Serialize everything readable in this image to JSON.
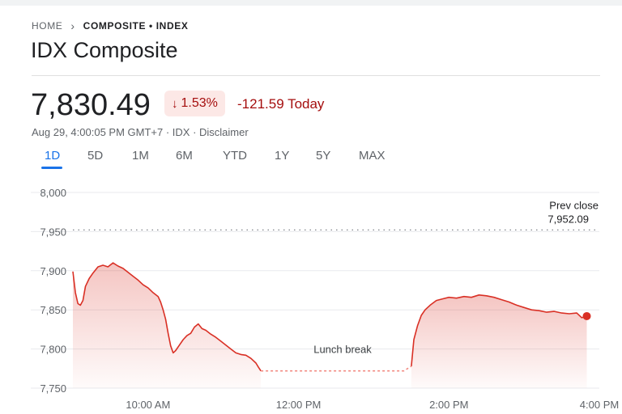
{
  "breadcrumb": {
    "home": "HOME",
    "current": "COMPOSITE • INDEX"
  },
  "title": "IDX Composite",
  "quote": {
    "price": "7,830.49",
    "change_percent": "1.53%",
    "change_abs": "-121.59 Today",
    "timestamp": "Aug 29, 4:00:05 PM GMT+7 · IDX · Disclaimer"
  },
  "tabs": [
    "1D",
    "5D",
    "1M",
    "6M",
    "YTD",
    "1Y",
    "5Y",
    "MAX"
  ],
  "active_tab": "1D",
  "colors": {
    "line": "#d93025",
    "accent": "#1a73e8",
    "negative_text": "#a50e0e",
    "badge_bg": "#fce8e6"
  },
  "chart_data": {
    "type": "line",
    "ylim": [
      7750,
      8000
    ],
    "y_ticks": [
      8000,
      7950,
      7900,
      7850,
      7800,
      7750
    ],
    "y_tick_labels": [
      "8,000",
      "7,950",
      "7,900",
      "7,850",
      "7,800",
      "7,750"
    ],
    "x_ticks": [
      "10:00",
      "12:00",
      "14:00",
      "16:00"
    ],
    "x_tick_labels": [
      "10:00 AM",
      "12:00 PM",
      "2:00 PM",
      "4:00 PM"
    ],
    "xlim": [
      "09:00",
      "16:00"
    ],
    "prev_close": 7952.09,
    "prev_close_label": "Prev close",
    "prev_close_value_label": "7,952.09",
    "lunch_break_label": "Lunch break",
    "lunch_break": [
      "11:30",
      "13:30"
    ],
    "series": [
      {
        "segment": "morning",
        "points": [
          [
            "09:00",
            7899
          ],
          [
            "09:02",
            7872
          ],
          [
            "09:04",
            7858
          ],
          [
            "09:06",
            7856
          ],
          [
            "09:08",
            7862
          ],
          [
            "09:10",
            7880
          ],
          [
            "09:13",
            7890
          ],
          [
            "09:16",
            7897
          ],
          [
            "09:20",
            7905
          ],
          [
            "09:24",
            7907
          ],
          [
            "09:28",
            7905
          ],
          [
            "09:32",
            7910
          ],
          [
            "09:36",
            7906
          ],
          [
            "09:40",
            7903
          ],
          [
            "09:44",
            7898
          ],
          [
            "09:48",
            7893
          ],
          [
            "09:52",
            7888
          ],
          [
            "09:56",
            7882
          ],
          [
            "10:00",
            7878
          ],
          [
            "10:04",
            7872
          ],
          [
            "10:08",
            7867
          ],
          [
            "10:10",
            7860
          ],
          [
            "10:12",
            7850
          ],
          [
            "10:14",
            7838
          ],
          [
            "10:16",
            7820
          ],
          [
            "10:18",
            7804
          ],
          [
            "10:20",
            7795
          ],
          [
            "10:22",
            7798
          ],
          [
            "10:25",
            7805
          ],
          [
            "10:28",
            7812
          ],
          [
            "10:31",
            7817
          ],
          [
            "10:34",
            7820
          ],
          [
            "10:37",
            7828
          ],
          [
            "10:40",
            7832
          ],
          [
            "10:43",
            7826
          ],
          [
            "10:46",
            7824
          ],
          [
            "10:50",
            7819
          ],
          [
            "10:54",
            7815
          ],
          [
            "10:58",
            7810
          ],
          [
            "11:02",
            7805
          ],
          [
            "11:06",
            7800
          ],
          [
            "11:10",
            7795
          ],
          [
            "11:14",
            7793
          ],
          [
            "11:18",
            7792
          ],
          [
            "11:22",
            7788
          ],
          [
            "11:26",
            7782
          ],
          [
            "11:28",
            7777
          ],
          [
            "11:30",
            7772
          ]
        ]
      },
      {
        "segment": "afternoon",
        "points": [
          [
            "13:30",
            7778
          ],
          [
            "13:32",
            7812
          ],
          [
            "13:35",
            7830
          ],
          [
            "13:38",
            7843
          ],
          [
            "13:41",
            7850
          ],
          [
            "13:45",
            7856
          ],
          [
            "13:50",
            7862
          ],
          [
            "13:55",
            7864
          ],
          [
            "14:00",
            7866
          ],
          [
            "14:06",
            7865
          ],
          [
            "14:12",
            7867
          ],
          [
            "14:18",
            7866
          ],
          [
            "14:24",
            7869
          ],
          [
            "14:30",
            7868
          ],
          [
            "14:36",
            7866
          ],
          [
            "14:42",
            7863
          ],
          [
            "14:48",
            7860
          ],
          [
            "14:54",
            7856
          ],
          [
            "15:00",
            7853
          ],
          [
            "15:06",
            7850
          ],
          [
            "15:12",
            7849
          ],
          [
            "15:18",
            7847
          ],
          [
            "15:24",
            7848
          ],
          [
            "15:30",
            7846
          ],
          [
            "15:36",
            7845
          ],
          [
            "15:42",
            7846
          ],
          [
            "15:46",
            7840
          ],
          [
            "15:50",
            7842
          ]
        ]
      }
    ],
    "gap_points": [
      [
        "11:30",
        7772
      ],
      [
        "13:24",
        7772
      ],
      [
        "13:30",
        7778
      ]
    ]
  }
}
